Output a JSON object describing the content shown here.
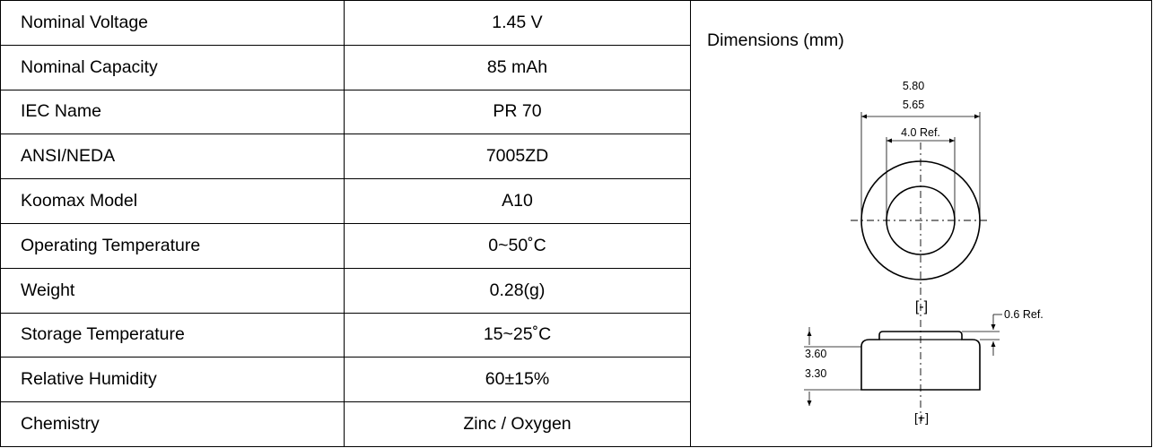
{
  "specs": [
    {
      "label": "Nominal Voltage",
      "value": "1.45 V"
    },
    {
      "label": "Nominal Capacity",
      "value": "85 mAh"
    },
    {
      "label": "IEC Name",
      "value": "PR 70"
    },
    {
      "label": "ANSI/NEDA",
      "value": "7005ZD"
    },
    {
      "label": "Koomax Model",
      "value": "A10"
    },
    {
      "label": "Operating Temperature",
      "value": "0~50˚C"
    },
    {
      "label": "Weight",
      "value": "0.28(g)"
    },
    {
      "label": "Storage Temperature",
      "value": "15~25˚C"
    },
    {
      "label": "Relative Humidity",
      "value": "60±15%"
    },
    {
      "label": "Chemistry",
      "value": "Zinc / Oxygen"
    }
  ],
  "dimensions": {
    "title": "Dimensions (mm)",
    "outer_dia_max": "5.80",
    "outer_dia_min": "5.65",
    "inner_dia": "4.0 Ref.",
    "neg_terminal": "[-]",
    "pos_terminal": "[+]",
    "top_step": "0.6 Ref.",
    "height_max": "3.60",
    "height_min": "3.30"
  }
}
